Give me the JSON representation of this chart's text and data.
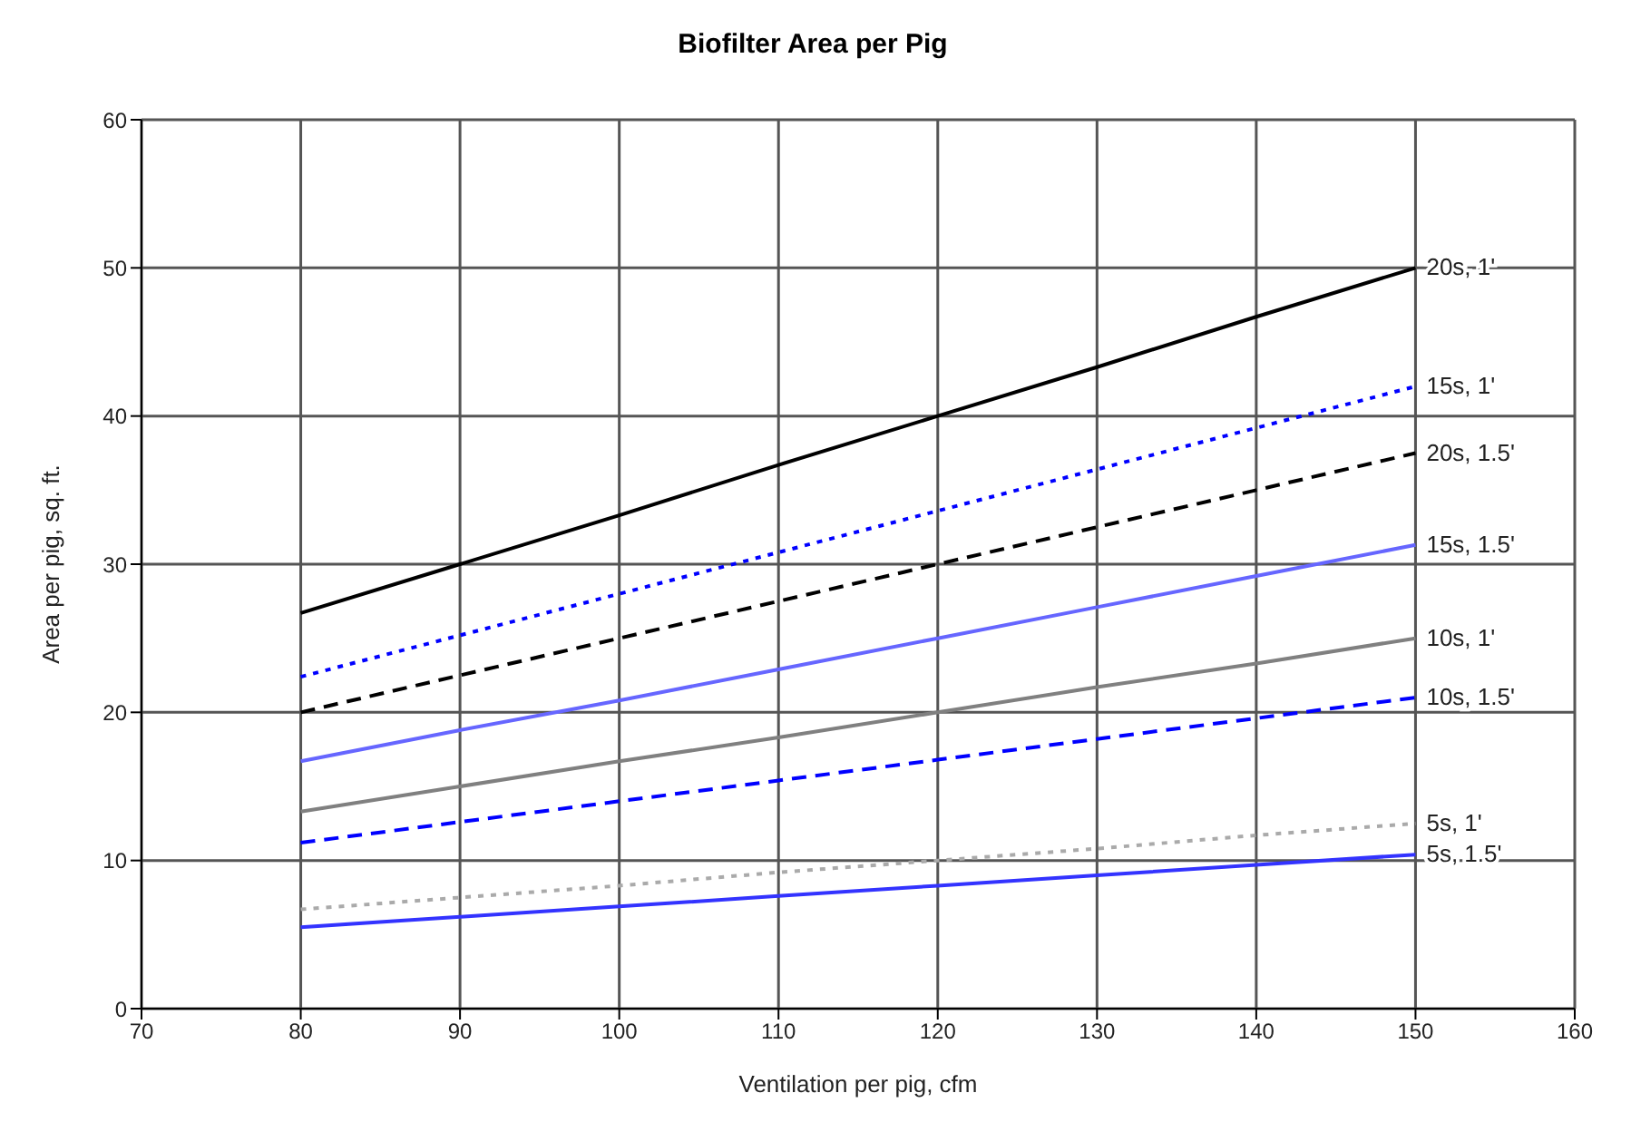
{
  "chart_data": {
    "type": "line",
    "title": "Biofilter Area per Pig",
    "xlabel": "Ventilation per pig, cfm",
    "ylabel": "Area per pig, sq. ft.",
    "x": [
      80,
      90,
      100,
      110,
      120,
      130,
      140,
      150
    ],
    "xlim": [
      70,
      160
    ],
    "xticks": [
      70,
      80,
      90,
      100,
      110,
      120,
      130,
      140,
      150,
      160
    ],
    "ylim": [
      0,
      60
    ],
    "yticks": [
      0,
      10,
      20,
      30,
      40,
      50,
      60
    ],
    "grid": true,
    "marker": "none",
    "series": [
      {
        "name": "20s, 1'",
        "color": "#000000",
        "line_style": "solid",
        "values": [
          26.7,
          30,
          33.3,
          36.7,
          40,
          43.3,
          46.7,
          50
        ]
      },
      {
        "name": "15s, 1'",
        "color": "#0000ff",
        "line_style": "dotted",
        "values": [
          22.4,
          25.2,
          28,
          30.8,
          33.6,
          36.4,
          39.2,
          42
        ]
      },
      {
        "name": "20s, 1.5'",
        "color": "#000000",
        "line_style": "dashed",
        "values": [
          20,
          22.5,
          25,
          27.5,
          30,
          32.5,
          35,
          37.5
        ]
      },
      {
        "name": "15s, 1.5'",
        "color": "#6666ff",
        "line_style": "solid",
        "values": [
          16.7,
          18.8,
          20.8,
          22.9,
          25,
          27.1,
          29.2,
          31.3
        ]
      },
      {
        "name": "10s, 1'",
        "color": "#808080",
        "line_style": "solid",
        "values": [
          13.3,
          15,
          16.7,
          18.3,
          20,
          21.7,
          23.3,
          25
        ]
      },
      {
        "name": "10s, 1.5'",
        "color": "#0000ff",
        "line_style": "dashed",
        "values": [
          11.2,
          12.6,
          14,
          15.4,
          16.8,
          18.2,
          19.6,
          21
        ]
      },
      {
        "name": "5s, 1'",
        "color": "#aaaaaa",
        "line_style": "dotted",
        "values": [
          6.7,
          7.5,
          8.3,
          9.2,
          10,
          10.8,
          11.7,
          12.5
        ]
      },
      {
        "name": "5s, 1.5'",
        "color": "#3333ff",
        "line_style": "solid",
        "values": [
          5.5,
          6.2,
          6.9,
          7.6,
          8.3,
          9,
          9.7,
          10.4
        ]
      }
    ]
  }
}
